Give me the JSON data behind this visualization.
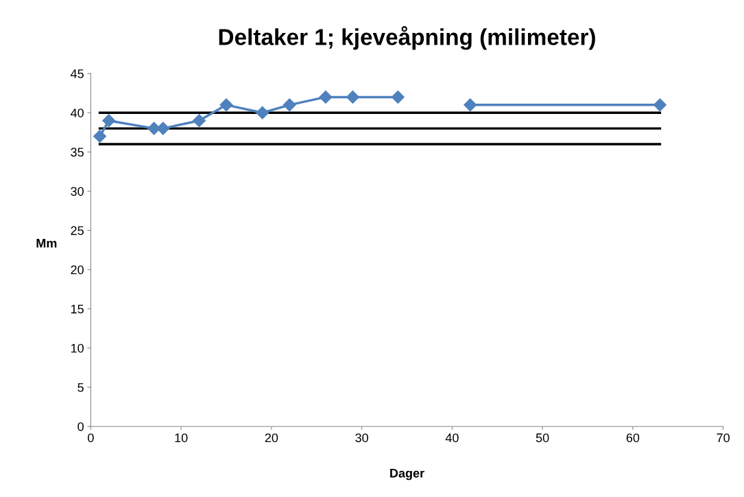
{
  "chart_data": {
    "type": "line",
    "title": "Deltaker 1; kjeveåpning (milimeter)",
    "xlabel": "Dager",
    "ylabel": "Mm",
    "series": [
      {
        "color": "#4f81bd",
        "marker": "diamond",
        "x": [
          1,
          2,
          7,
          8,
          12,
          15,
          19,
          22,
          26,
          29,
          34
        ],
        "values": [
          37,
          39,
          38,
          38,
          39,
          41,
          40,
          41,
          42,
          42,
          42
        ]
      },
      {
        "color": "#4f81bd",
        "marker": "diamond",
        "x": [
          42,
          63
        ],
        "values": [
          41,
          41
        ]
      },
      {
        "color": "#000000",
        "marker": "none",
        "x": [
          1,
          63
        ],
        "values": [
          40,
          40
        ]
      },
      {
        "color": "#000000",
        "marker": "none",
        "x": [
          1,
          63
        ],
        "values": [
          38,
          38
        ]
      },
      {
        "color": "#000000",
        "marker": "none",
        "x": [
          1,
          63
        ],
        "values": [
          36,
          36
        ]
      }
    ],
    "xlim": [
      0,
      70
    ],
    "xticks": [
      0,
      10,
      20,
      30,
      40,
      50,
      60,
      70
    ],
    "ylim": [
      0,
      45
    ],
    "yticks": [
      0,
      5,
      10,
      15,
      20,
      25,
      30,
      35,
      40,
      45
    ],
    "grid": false,
    "legend": false
  }
}
